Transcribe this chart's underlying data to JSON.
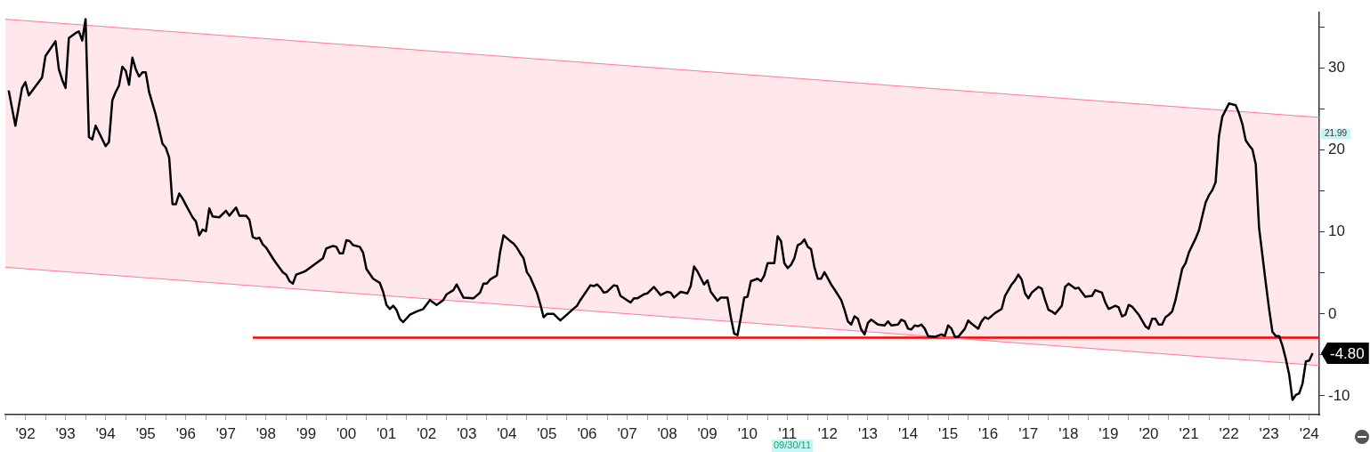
{
  "chart_data": {
    "type": "line",
    "xlim": [
      "1992-01",
      "2024-10"
    ],
    "ylim": [
      -12.3,
      36.8
    ],
    "xticks": [
      {
        "value": "1992",
        "label": null
      },
      {
        "value": "1992-07",
        "label": "'92"
      },
      {
        "value": "1993",
        "label": null
      },
      {
        "value": "1993-07",
        "label": "'93"
      },
      {
        "value": "1994",
        "label": null
      },
      {
        "value": "1994-07",
        "label": "'94"
      },
      {
        "value": "1995",
        "label": null
      },
      {
        "value": "1995-07",
        "label": "'95"
      },
      {
        "value": "1996",
        "label": null
      },
      {
        "value": "1996-07",
        "label": "'96"
      },
      {
        "value": "1997",
        "label": null
      },
      {
        "value": "1997-07",
        "label": "'97"
      },
      {
        "value": "1998",
        "label": null
      },
      {
        "value": "1998-07",
        "label": "'98"
      },
      {
        "value": "1999",
        "label": null
      },
      {
        "value": "1999-07",
        "label": "'99"
      },
      {
        "value": "2000",
        "label": null
      },
      {
        "value": "2000-07",
        "label": "'00"
      },
      {
        "value": "2001",
        "label": null
      },
      {
        "value": "2001-07",
        "label": "'01"
      },
      {
        "value": "2002",
        "label": null
      },
      {
        "value": "2002-07",
        "label": "'02"
      },
      {
        "value": "2003",
        "label": null
      },
      {
        "value": "2003-07",
        "label": "'03"
      },
      {
        "value": "2004",
        "label": null
      },
      {
        "value": "2004-07",
        "label": "'04"
      },
      {
        "value": "2005",
        "label": null
      },
      {
        "value": "2005-07",
        "label": "'05"
      },
      {
        "value": "2006",
        "label": null
      },
      {
        "value": "2006-07",
        "label": "'06"
      },
      {
        "value": "2007",
        "label": null
      },
      {
        "value": "2007-07",
        "label": "'07"
      },
      {
        "value": "2008",
        "label": null
      },
      {
        "value": "2008-07",
        "label": "'08"
      },
      {
        "value": "2009",
        "label": null
      },
      {
        "value": "2009-07",
        "label": "'09"
      },
      {
        "value": "2010",
        "label": null
      },
      {
        "value": "2010-07",
        "label": "'10"
      },
      {
        "value": "2011",
        "label": null
      },
      {
        "value": "2011-07",
        "label": "'11"
      },
      {
        "value": "2012",
        "label": null
      },
      {
        "value": "2012-07",
        "label": "'12"
      },
      {
        "value": "2013",
        "label": null
      },
      {
        "value": "2013-07",
        "label": "'13"
      },
      {
        "value": "2014",
        "label": null
      },
      {
        "value": "2014-07",
        "label": "'14"
      },
      {
        "value": "2015",
        "label": null
      },
      {
        "value": "2015-07",
        "label": "'15"
      },
      {
        "value": "2016",
        "label": null
      },
      {
        "value": "2016-07",
        "label": "'16"
      },
      {
        "value": "2017",
        "label": null
      },
      {
        "value": "2017-07",
        "label": "'17"
      },
      {
        "value": "2018",
        "label": null
      },
      {
        "value": "2018-07",
        "label": "'18"
      },
      {
        "value": "2019",
        "label": null
      },
      {
        "value": "2019-07",
        "label": "'19"
      },
      {
        "value": "2020",
        "label": null
      },
      {
        "value": "2020-07",
        "label": "'20"
      },
      {
        "value": "2021",
        "label": null
      },
      {
        "value": "2021-07",
        "label": "'21"
      },
      {
        "value": "2022",
        "label": null
      },
      {
        "value": "2022-07",
        "label": "'22"
      },
      {
        "value": "2023",
        "label": null
      },
      {
        "value": "2023-07",
        "label": "'23"
      },
      {
        "value": "2024",
        "label": null
      },
      {
        "value": "2024-07",
        "label": "'24"
      }
    ],
    "yticks": [
      {
        "value": -10,
        "label": "-10"
      },
      {
        "value": -5,
        "label": null
      },
      {
        "value": 0,
        "label": "0"
      },
      {
        "value": 5,
        "label": null
      },
      {
        "value": 10,
        "label": "10"
      },
      {
        "value": 15,
        "label": null
      },
      {
        "value": 20,
        "label": "20"
      },
      {
        "value": 25,
        "label": null
      },
      {
        "value": 30,
        "label": "30"
      },
      {
        "value": 35,
        "label": null
      }
    ],
    "grid": false,
    "legend": false,
    "marker": "none",
    "line_style": "solid",
    "series": [
      {
        "type": "line",
        "color": "#ff7a90",
        "x": [
          "1992-01",
          "2024-10"
        ],
        "values": [
          36.0,
          24.0
        ],
        "lower": [
          5.7,
          -6.3
        ],
        "upper": [
          36.0,
          24.0
        ]
      },
      {
        "type": "line",
        "color": "#ff7a90",
        "x": [
          "1992-01",
          "2024-10"
        ],
        "values": [
          5.7,
          -6.3
        ]
      },
      {
        "type": "line",
        "color": "#ff0000",
        "x": [
          "1998-03",
          "2024-10"
        ],
        "values": [
          -2.9,
          -2.9
        ]
      },
      {
        "type": "line",
        "color": "#000000",
        "x": [
          "1992-02",
          "1992-04",
          "1992-06",
          "1992-07",
          "1992-08",
          "1992-12",
          "1993-01",
          "1993-04",
          "1993-05",
          "1993-06",
          "1993-07",
          "1993-08",
          "1993-10",
          "1993-11",
          "1993-12",
          "1994-01",
          "1994-02",
          "1994-03",
          "1994-04",
          "1994-07",
          "1994-08",
          "1994-09",
          "1994-10",
          "1994-11",
          "1994-12",
          "1995-01",
          "1995-02",
          "1995-03",
          "1995-04",
          "1995-05",
          "1995-06",
          "1995-07",
          "1995-08",
          "1995-10",
          "1995-12",
          "1996-01",
          "1996-02",
          "1996-03",
          "1996-04",
          "1996-05",
          "1996-06",
          "1996-07",
          "1996-09",
          "1996-10",
          "1996-11",
          "1996-12",
          "1997-01",
          "1997-02",
          "1997-03",
          "1997-05",
          "1997-07",
          "1997-08",
          "1997-10",
          "1997-11",
          "1998-01",
          "1998-02",
          "1998-03",
          "1998-04",
          "1998-05",
          "1998-06",
          "1998-07",
          "1998-09",
          "1998-10",
          "1998-12",
          "1999-01",
          "1999-02",
          "1999-03",
          "1999-04",
          "1999-06",
          "1999-07",
          "1999-09",
          "1999-12",
          "2000-01",
          "2000-03",
          "2000-04",
          "2000-05",
          "2000-06",
          "2000-07",
          "2000-08",
          "2000-09",
          "2000-11",
          "2000-12",
          "2001-01",
          "2001-03",
          "2001-05",
          "2001-06",
          "2001-07",
          "2001-08",
          "2001-09",
          "2001-10",
          "2001-11",
          "2001-12",
          "2002-02",
          "2002-04",
          "2002-06",
          "2002-08",
          "2002-10",
          "2002-12",
          "2003-01",
          "2003-03",
          "2003-04",
          "2003-06",
          "2003-09",
          "2003-11",
          "2003-12",
          "2004-01",
          "2004-02",
          "2004-04",
          "2004-05",
          "2004-06",
          "2004-08",
          "2004-09",
          "2004-10",
          "2004-11",
          "2004-12",
          "2005-01",
          "2005-02",
          "2005-04",
          "2005-05",
          "2005-06",
          "2005-07",
          "2005-09",
          "2005-11",
          "2006-02",
          "2006-04",
          "2006-05",
          "2006-08",
          "2006-09",
          "2006-10",
          "2006-11",
          "2006-12",
          "2007-01",
          "2007-03",
          "2007-04",
          "2007-05",
          "2007-08",
          "2007-09",
          "2007-10",
          "2007-12",
          "2008-01",
          "2008-03",
          "2008-05",
          "2008-07",
          "2008-08",
          "2008-09",
          "2008-11",
          "2009-01",
          "2009-02",
          "2009-03",
          "2009-04",
          "2009-06",
          "2009-07",
          "2009-08",
          "2009-10",
          "2009-11",
          "2009-12",
          "2010-01",
          "2010-02",
          "2010-03",
          "2010-04",
          "2010-05",
          "2010-06",
          "2010-07",
          "2010-08",
          "2010-10",
          "2010-11",
          "2010-12",
          "2011-01",
          "2011-03",
          "2011-04",
          "2011-05",
          "2011-06",
          "2011-07",
          "2011-08",
          "2011-09",
          "2011-10",
          "2011-11",
          "2011-12",
          "2012-01",
          "2012-02",
          "2012-03",
          "2012-04",
          "2012-05",
          "2012-06",
          "2012-08",
          "2012-09",
          "2012-11",
          "2012-12",
          "2013-01",
          "2013-02",
          "2013-03",
          "2013-04",
          "2013-05",
          "2013-06",
          "2013-07",
          "2013-08",
          "2013-10",
          "2013-12",
          "2014-01",
          "2014-02",
          "2014-04",
          "2014-05",
          "2014-06",
          "2014-07",
          "2014-08",
          "2014-09",
          "2014-10",
          "2014-11",
          "2014-12",
          "2015-01",
          "2015-03",
          "2015-05",
          "2015-06",
          "2015-07",
          "2015-08",
          "2015-09",
          "2015-10",
          "2015-12",
          "2016-01",
          "2016-02",
          "2016-04",
          "2016-05",
          "2016-06",
          "2016-07",
          "2016-09",
          "2016-11",
          "2016-12",
          "2017-02",
          "2017-03",
          "2017-04",
          "2017-05",
          "2017-06",
          "2017-07",
          "2017-08",
          "2017-10",
          "2017-11",
          "2017-12",
          "2018-01",
          "2018-02",
          "2018-03",
          "2018-05",
          "2018-06",
          "2018-07",
          "2018-09",
          "2018-10",
          "2018-12",
          "2019-02",
          "2019-03",
          "2019-05",
          "2019-06",
          "2019-07",
          "2019-09",
          "2019-10",
          "2019-11",
          "2019-12",
          "2020-01",
          "2020-02",
          "2020-04",
          "2020-06",
          "2020-07",
          "2020-08",
          "2020-09",
          "2020-10",
          "2020-11",
          "2020-12",
          "2021-01",
          "2021-02",
          "2021-03",
          "2021-04",
          "2021-05",
          "2021-06",
          "2021-07",
          "2021-09",
          "2021-10",
          "2021-11",
          "2021-12",
          "2022-01",
          "2022-02",
          "2022-03",
          "2022-04",
          "2022-05",
          "2022-07",
          "2022-09",
          "2022-10",
          "2022-11",
          "2022-12",
          "2023-01",
          "2023-02",
          "2023-03",
          "2023-04",
          "2023-06",
          "2023-07",
          "2023-08",
          "2023-09",
          "2023-10",
          "2023-11",
          "2023-12",
          "2024-01",
          "2024-02",
          "2024-03",
          "2024-04",
          "2024-05",
          "2024-06",
          "2024-07",
          "2024-08"
        ],
        "values": [
          27.3,
          23.0,
          27.6,
          28.3,
          26.7,
          28.9,
          31.5,
          33.3,
          29.9,
          28.6,
          27.6,
          33.7,
          34.3,
          34.5,
          33.4,
          36.0,
          21.6,
          21.3,
          23.0,
          20.5,
          21.0,
          26.1,
          27.1,
          27.9,
          30.2,
          29.7,
          28.0,
          31.3,
          29.9,
          29.0,
          29.5,
          29.5,
          27.1,
          24.3,
          20.8,
          20.3,
          19.1,
          13.4,
          13.4,
          14.7,
          14.1,
          13.3,
          11.8,
          11.3,
          9.6,
          10.3,
          10.1,
          12.9,
          11.9,
          11.8,
          12.6,
          12.0,
          13.0,
          12.0,
          12.0,
          11.5,
          9.4,
          9.2,
          9.3,
          8.5,
          8.1,
          6.8,
          6.2,
          5.1,
          4.8,
          4.0,
          3.7,
          4.8,
          5.1,
          5.3,
          5.9,
          6.8,
          8.0,
          8.3,
          8.2,
          7.4,
          7.4,
          9.0,
          8.9,
          8.4,
          8.2,
          7.5,
          5.5,
          4.3,
          3.8,
          2.7,
          1.1,
          0.6,
          1.0,
          0.5,
          -0.6,
          -1.0,
          -0.1,
          0.3,
          0.6,
          1.7,
          1.1,
          1.7,
          2.4,
          2.9,
          3.6,
          2.0,
          1.9,
          2.6,
          3.7,
          3.7,
          4.2,
          4.7,
          7.6,
          9.6,
          8.9,
          8.6,
          8.1,
          7.4,
          6.8,
          5.1,
          4.5,
          2.6,
          1.2,
          -0.4,
          0.0,
          0.0,
          -0.8,
          0.3,
          1.0,
          1.7,
          3.5,
          3.4,
          3.6,
          3.2,
          2.6,
          2.7,
          3.5,
          3.4,
          2.2,
          1.4,
          1.9,
          1.9,
          2.4,
          2.5,
          3.3,
          2.3,
          2.7,
          2.6,
          2.0,
          2.7,
          2.5,
          3.4,
          5.8,
          5.2,
          3.6,
          4.1,
          2.7,
          1.6,
          2.0,
          2.0,
          2.0,
          -0.4,
          -2.4,
          -2.6,
          -0.4,
          2.0,
          2.1,
          4.0,
          4.3,
          4.0,
          4.7,
          6.2,
          6.2,
          9.5,
          8.9,
          6.2,
          5.6,
          6.0,
          6.8,
          8.4,
          8.6,
          9.1,
          8.2,
          7.9,
          5.7,
          4.3,
          4.3,
          5.1,
          3.6,
          3.0,
          1.7,
          0.5,
          -0.9,
          -1.3,
          -0.3,
          -0.6,
          -1.9,
          -2.5,
          -1.1,
          -0.7,
          -1.3,
          -1.4,
          -0.9,
          -1.4,
          -1.3,
          -0.7,
          -0.9,
          -1.8,
          -1.9,
          -1.4,
          -1.5,
          -1.3,
          -1.8,
          -2.7,
          -2.8,
          -2.5,
          -2.7,
          -1.4,
          -1.8,
          -2.8,
          -2.8,
          -1.8,
          -0.8,
          -1.2,
          -1.8,
          -0.9,
          -0.4,
          -0.6,
          0.1,
          0.6,
          2.2,
          3.6,
          4.1,
          4.8,
          4.2,
          2.5,
          1.9,
          2.6,
          3.3,
          3.1,
          1.7,
          0.5,
          0.3,
          0.0,
          1.0,
          3.3,
          3.7,
          3.1,
          3.2,
          2.1,
          2.2,
          2.9,
          2.6,
          1.4,
          0.6,
          1.0,
          0.8,
          -0.3,
          -0.1,
          1.1,
          0.9,
          -0.1,
          -1.5,
          -1.8,
          -0.6,
          -0.6,
          -1.3,
          -1.3,
          -0.4,
          -0.1,
          0.3,
          1.7,
          3.6,
          5.5,
          6.2,
          7.5,
          9.2,
          10.2,
          11.9,
          13.6,
          14.5,
          15.1,
          16.1,
          21.7,
          24.1,
          25.7,
          25.5,
          24.5,
          23.2,
          21.2,
          20.6,
          20.1,
          18.3,
          10.5,
          3.8,
          0.6,
          -2.2,
          -2.7,
          -2.7,
          -3.9,
          -5.5,
          -7.4,
          -10.5,
          -9.9,
          -9.7,
          -8.5,
          -5.8,
          -5.7,
          -4.8
        ]
      }
    ],
    "annotations": [
      {
        "text": "21.99",
        "x": "2024-10",
        "y": 21.99
      },
      {
        "text": "-4.80",
        "x": "2024-08",
        "y": -4.8
      },
      "09/30/11"
    ]
  }
}
